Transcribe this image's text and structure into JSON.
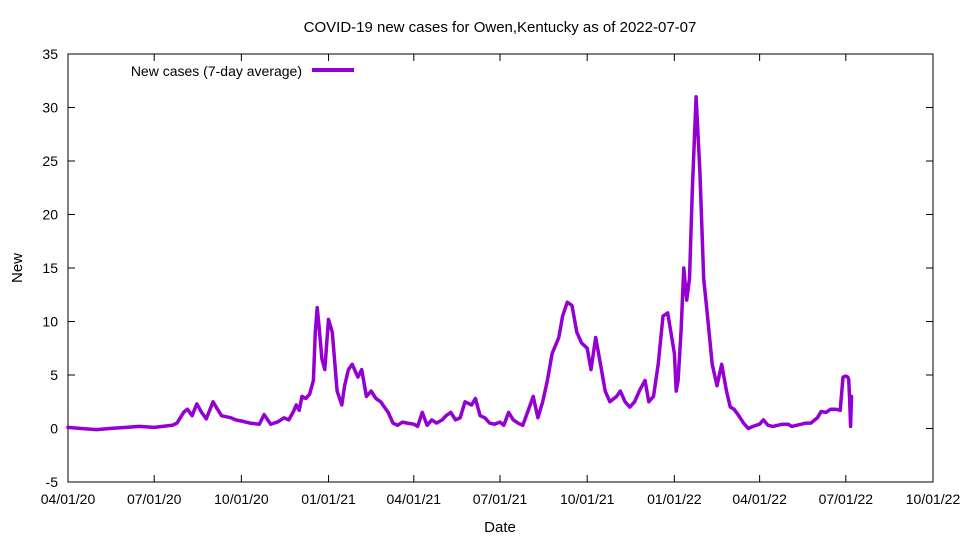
{
  "chart_data": {
    "type": "line",
    "title": "COVID-19 new cases for Owen,Kentucky as of 2022-07-07",
    "xlabel": "Date",
    "ylabel": "New",
    "xlim": [
      "2020-04-01",
      "2022-10-01"
    ],
    "ylim": [
      -5,
      35
    ],
    "x_ticks": [
      "2020-04-01",
      "2020-07-01",
      "2020-10-01",
      "2021-01-01",
      "2021-04-01",
      "2021-07-01",
      "2021-10-01",
      "2022-01-01",
      "2022-04-01",
      "2022-07-01",
      "2022-10-01"
    ],
    "x_tick_labels": [
      "04/01/20",
      "07/01/20",
      "10/01/20",
      "01/01/21",
      "04/01/21",
      "07/01/21",
      "10/01/21",
      "01/01/22",
      "04/01/22",
      "07/01/22",
      "10/01/22"
    ],
    "y_ticks": [
      -5,
      0,
      5,
      10,
      15,
      20,
      25,
      30,
      35
    ],
    "y_tick_labels": [
      "-5",
      "0",
      "5",
      "10",
      "15",
      "20",
      "25",
      "30",
      "35"
    ],
    "grid": false,
    "legend_position": "top-left",
    "series": [
      {
        "name": "New cases (7-day average)",
        "color": "#9400d3",
        "x": [
          "2020-04-01",
          "2020-04-15",
          "2020-05-01",
          "2020-05-15",
          "2020-06-01",
          "2020-06-15",
          "2020-07-01",
          "2020-07-10",
          "2020-07-20",
          "2020-07-25",
          "2020-08-01",
          "2020-08-05",
          "2020-08-10",
          "2020-08-15",
          "2020-08-20",
          "2020-08-25",
          "2020-09-01",
          "2020-09-10",
          "2020-09-20",
          "2020-09-25",
          "2020-10-01",
          "2020-10-10",
          "2020-10-20",
          "2020-10-25",
          "2020-11-01",
          "2020-11-08",
          "2020-11-15",
          "2020-11-20",
          "2020-11-25",
          "2020-11-28",
          "2020-12-01",
          "2020-12-04",
          "2020-12-08",
          "2020-12-12",
          "2020-12-16",
          "2020-12-18",
          "2020-12-20",
          "2020-12-22",
          "2020-12-25",
          "2020-12-28",
          "2021-01-01",
          "2021-01-05",
          "2021-01-10",
          "2021-01-15",
          "2021-01-18",
          "2021-01-22",
          "2021-01-26",
          "2021-02-01",
          "2021-02-05",
          "2021-02-10",
          "2021-02-15",
          "2021-02-20",
          "2021-02-25",
          "2021-03-01",
          "2021-03-05",
          "2021-03-10",
          "2021-03-15",
          "2021-03-20",
          "2021-03-25",
          "2021-04-01",
          "2021-04-05",
          "2021-04-10",
          "2021-04-15",
          "2021-04-20",
          "2021-04-25",
          "2021-05-01",
          "2021-05-05",
          "2021-05-10",
          "2021-05-15",
          "2021-05-20",
          "2021-05-25",
          "2021-06-01",
          "2021-06-05",
          "2021-06-10",
          "2021-06-15",
          "2021-06-20",
          "2021-06-25",
          "2021-07-01",
          "2021-07-05",
          "2021-07-10",
          "2021-07-15",
          "2021-07-20",
          "2021-07-25",
          "2021-08-01",
          "2021-08-05",
          "2021-08-10",
          "2021-08-15",
          "2021-08-20",
          "2021-08-25",
          "2021-09-01",
          "2021-09-05",
          "2021-09-10",
          "2021-09-15",
          "2021-09-20",
          "2021-09-25",
          "2021-10-01",
          "2021-10-05",
          "2021-10-10",
          "2021-10-15",
          "2021-10-20",
          "2021-10-25",
          "2021-11-01",
          "2021-11-05",
          "2021-11-10",
          "2021-11-15",
          "2021-11-20",
          "2021-11-25",
          "2021-12-01",
          "2021-12-05",
          "2021-12-10",
          "2021-12-15",
          "2021-12-20",
          "2021-12-25",
          "2022-01-01",
          "2022-01-03",
          "2022-01-05",
          "2022-01-08",
          "2022-01-11",
          "2022-01-14",
          "2022-01-17",
          "2022-01-20",
          "2022-01-24",
          "2022-01-28",
          "2022-02-01",
          "2022-02-05",
          "2022-02-10",
          "2022-02-15",
          "2022-02-20",
          "2022-02-25",
          "2022-03-01",
          "2022-03-05",
          "2022-03-10",
          "2022-03-15",
          "2022-03-20",
          "2022-03-25",
          "2022-04-01",
          "2022-04-05",
          "2022-04-10",
          "2022-04-15",
          "2022-04-20",
          "2022-04-25",
          "2022-05-01",
          "2022-05-05",
          "2022-05-10",
          "2022-05-15",
          "2022-05-20",
          "2022-05-25",
          "2022-06-01",
          "2022-06-05",
          "2022-06-10",
          "2022-06-15",
          "2022-06-20",
          "2022-06-25",
          "2022-06-28",
          "2022-07-01",
          "2022-07-03",
          "2022-07-04",
          "2022-07-05",
          "2022-07-06",
          "2022-07-07"
        ],
        "y": [
          0.1,
          0,
          -0.1,
          0,
          0.1,
          0.2,
          0.1,
          0.2,
          0.3,
          0.5,
          1.5,
          1.8,
          1.2,
          2.3,
          1.5,
          0.9,
          2.5,
          1.2,
          1.0,
          0.8,
          0.7,
          0.5,
          0.4,
          1.3,
          0.4,
          0.6,
          1.0,
          0.8,
          1.6,
          2.2,
          1.7,
          3.0,
          2.8,
          3.2,
          4.5,
          9.0,
          11.3,
          9.5,
          6.5,
          5.5,
          10.2,
          9.0,
          3.5,
          2.2,
          4.0,
          5.5,
          6.0,
          4.8,
          5.5,
          3.0,
          3.5,
          2.8,
          2.5,
          2.0,
          1.5,
          0.5,
          0.3,
          0.6,
          0.5,
          0.4,
          0.2,
          1.5,
          0.3,
          0.8,
          0.5,
          0.8,
          1.2,
          1.5,
          0.8,
          1.0,
          2.5,
          2.2,
          2.8,
          1.2,
          1.0,
          0.5,
          0.4,
          0.6,
          0.3,
          1.5,
          0.8,
          0.5,
          0.3,
          2.0,
          3.0,
          1.0,
          2.5,
          4.5,
          7.0,
          8.5,
          10.5,
          11.8,
          11.5,
          9.0,
          8.0,
          7.5,
          5.5,
          8.5,
          6.0,
          3.5,
          2.5,
          3.0,
          3.5,
          2.5,
          2.0,
          2.5,
          3.5,
          4.5,
          2.5,
          3.0,
          6.0,
          10.5,
          10.8,
          7.0,
          3.5,
          4.5,
          9.0,
          15.0,
          12.0,
          14.0,
          22.5,
          31.0,
          24.0,
          14.0,
          10.5,
          6.0,
          4.0,
          6.0,
          3.5,
          2.0,
          1.8,
          1.2,
          0.5,
          0,
          0.2,
          0.4,
          0.8,
          0.3,
          0.2,
          0.3,
          0.4,
          0.4,
          0.2,
          0.3,
          0.4,
          0.5,
          0.5,
          1.0,
          1.6,
          1.5,
          1.8,
          1.8,
          1.7,
          4.8,
          4.9,
          4.8,
          4.6,
          2.8,
          0.2,
          3.0
        ]
      }
    ]
  }
}
